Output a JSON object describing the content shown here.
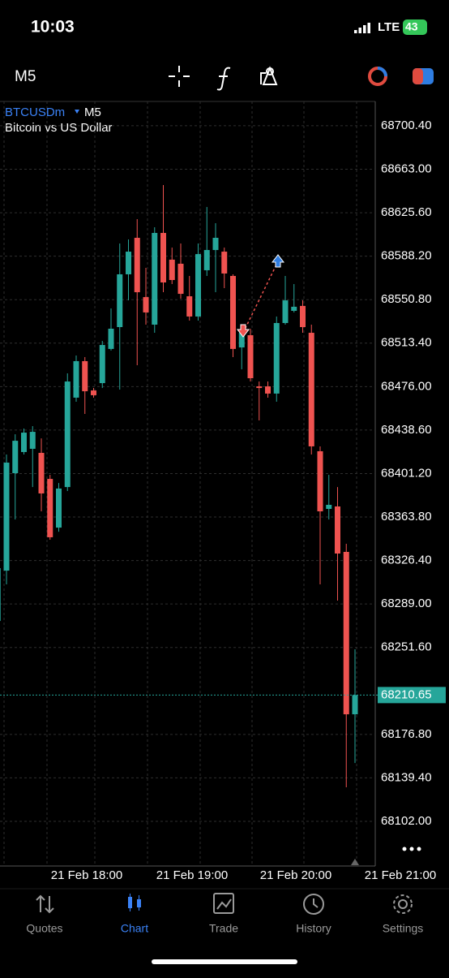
{
  "status_bar": {
    "time": "10:03",
    "network": "LTE",
    "battery": "43"
  },
  "toolbar": {
    "timeframe": "M5"
  },
  "chart": {
    "type": "candlestick",
    "symbol": "BTCUSDm",
    "timeframe": "M5",
    "description": "Bitcoin vs US Dollar",
    "up_color": "#26a69a",
    "down_color": "#ef5350",
    "ylim": [
      68063.6,
      68721.3
    ],
    "yticks": [
      {
        "value": 68700.4,
        "label": "68700.40"
      },
      {
        "value": 68663,
        "label": "68663.00"
      },
      {
        "value": 68625.6,
        "label": "68625.60"
      },
      {
        "value": 68588.2,
        "label": "68588.20"
      },
      {
        "value": 68550.8,
        "label": "68550.80"
      },
      {
        "value": 68513.4,
        "label": "68513.40"
      },
      {
        "value": 68476,
        "label": "68476.00"
      },
      {
        "value": 68438.6,
        "label": "68438.60"
      },
      {
        "value": 68401.2,
        "label": "68401.20"
      },
      {
        "value": 68363.8,
        "label": "68363.80"
      },
      {
        "value": 68326.4,
        "label": "68326.40"
      },
      {
        "value": 68289,
        "label": "68289.00"
      },
      {
        "value": 68251.6,
        "label": "68251.60"
      },
      {
        "value": 68176.8,
        "label": "68176.80"
      },
      {
        "value": 68139.4,
        "label": "68139.40"
      },
      {
        "value": 68102,
        "label": "68102.00"
      }
    ],
    "x_labels": [
      "21 Feb 18:00",
      "21 Feb 19:00",
      "21 Feb 20:00",
      "21 Feb 21:00"
    ],
    "current_price": 68210.65,
    "open": [
      68274.4,
      68317.7,
      68401.5,
      68419.7,
      68422.5,
      68419.0,
      68396.6,
      68354.7,
      68389.6,
      68466.5,
      68497.9,
      68472.7,
      68479.0,
      68508.4,
      68527.2,
      68572.6,
      68604.0,
      68553.0,
      68529.3,
      68608.2,
      68585.2,
      68581.7,
      68553.7,
      68536.3,
      68576.1,
      68593.5,
      68592.1,
      68571.2,
      68509.7,
      68520.2,
      68476.2,
      68476.2,
      68470.0,
      68530.7,
      68541.2,
      68545.4,
      68522.3,
      68420.4,
      68370.8,
      68372.9,
      68333.8,
      68194.1
    ],
    "high": [
      68326.8,
      68417.6,
      68435.0,
      68439.9,
      68442.0,
      68431.5,
      68400.1,
      68393.1,
      68487.4,
      68502.8,
      68501.4,
      68474.8,
      68515.3,
      68543.3,
      68599.1,
      68602.6,
      68620.1,
      68578.2,
      68613.1,
      68649.4,
      68595.6,
      68599.1,
      68571.2,
      68599.1,
      68630.5,
      68616.6,
      68595.6,
      68572.6,
      68529.3,
      68525.8,
      68480.4,
      68480.4,
      68536.3,
      68571.2,
      68564.2,
      68550.2,
      68529.3,
      68424.6,
      68400.1,
      68389.6,
      68340.8,
      68250.0
    ],
    "low": [
      68270.9,
      68305.9,
      68361.7,
      68417.6,
      68389.6,
      68368.7,
      68344.3,
      68351.2,
      68386.2,
      68463.0,
      68452.5,
      68466.5,
      68474.8,
      68507.0,
      68473.4,
      68550.2,
      68494.4,
      68529.3,
      68522.3,
      68557.2,
      68564.2,
      68551.6,
      68532.8,
      68532.8,
      68571.2,
      68557.2,
      68560.7,
      68501.4,
      68490.9,
      68480.4,
      68446.9,
      68466.5,
      68463.0,
      68529.3,
      68539.8,
      68522.3,
      68417.6,
      68305.9,
      68361.7,
      68291.9,
      68131.3,
      68152.2
    ],
    "close": [
      68319.8,
      68410.6,
      68429.4,
      68436.4,
      68437.1,
      68384.1,
      68346.4,
      68388.3,
      68480.4,
      68497.9,
      68472.0,
      68468.6,
      68511.8,
      68525.8,
      68572.6,
      68592.1,
      68557.2,
      68539.8,
      68608.2,
      68565.6,
      68567.7,
      68555.8,
      68536.3,
      68590.0,
      68593.5,
      68604.0,
      68573.3,
      68508.4,
      68522.3,
      68483.2,
      68474.8,
      68470.0,
      68530.7,
      68550.2,
      68544.7,
      68527.2,
      68424.6,
      68368.7,
      68374.3,
      68332.4,
      68194.1,
      68210.65
    ]
  },
  "tab_bar": {
    "tabs": [
      "Quotes",
      "Chart",
      "Trade",
      "History",
      "Settings"
    ]
  }
}
